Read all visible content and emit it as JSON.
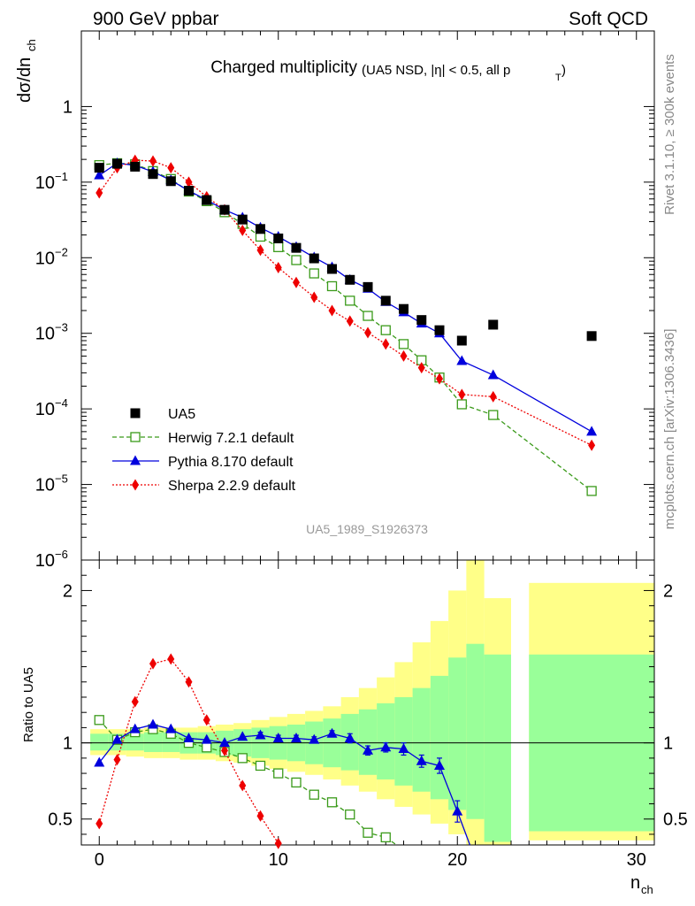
{
  "header": {
    "left": "900 GeV ppbar",
    "right": "Soft QCD",
    "side_top": "Rivet 3.1.10, ≥ 300k events",
    "side_bottom": "mcplots.cern.ch [arXiv:1306.3436]"
  },
  "chart_data": {
    "type": "line",
    "title": "Charged multiplicity",
    "subtitle": "(UA5 NSD, |η| < 0.5, all p",
    "subtitle_sub": "T",
    "analysis_id": "UA5_1989_S1926373",
    "xlabel_main": "n",
    "xlabel_sub": "ch",
    "ylabel_main": "dσ/dn",
    "ylabel_sub": "ch",
    "ratio_ylabel": "Ratio to UA5",
    "xlim": [
      -1,
      31
    ],
    "ylim_log": [
      1e-06,
      10.0
    ],
    "ratio_ylim": [
      0.33,
      2.2
    ],
    "x_ticks": [
      {
        "value": 0,
        "label": "0"
      },
      {
        "value": 10,
        "label": "10"
      },
      {
        "value": 20,
        "label": "20"
      },
      {
        "value": 30,
        "label": "30"
      }
    ],
    "y_ticks": [
      {
        "exp": 0,
        "base": "1",
        "sup": ""
      },
      {
        "exp": -1,
        "base": "10",
        "sup": "−1"
      },
      {
        "exp": -2,
        "base": "10",
        "sup": "−2"
      },
      {
        "exp": -3,
        "base": "10",
        "sup": "−3"
      },
      {
        "exp": -4,
        "base": "10",
        "sup": "−4"
      },
      {
        "exp": -5,
        "base": "10",
        "sup": "−5"
      },
      {
        "exp": -6,
        "base": "10",
        "sup": "−6"
      }
    ],
    "ratio_ticks": [
      {
        "value": 0.5,
        "label": "0.5"
      },
      {
        "value": 1,
        "label": "1"
      },
      {
        "value": 2,
        "label": "2"
      }
    ],
    "legend_position": "lower-left",
    "data": {
      "name": "UA5",
      "color": "#000000",
      "x": [
        0,
        1,
        2,
        3,
        4,
        5,
        6,
        7,
        8,
        9,
        10,
        11,
        12,
        13,
        14,
        15,
        16,
        17,
        18,
        19,
        20.25,
        22,
        27.5
      ],
      "y": [
        0.155,
        0.175,
        0.16,
        0.128,
        0.103,
        0.077,
        0.058,
        0.043,
        0.032,
        0.024,
        0.018,
        0.0135,
        0.0098,
        0.0071,
        0.0051,
        0.0041,
        0.0027,
        0.0021,
        0.0015,
        0.0011,
        0.0008,
        0.0013,
        0.00092
      ]
    },
    "series": [
      {
        "name": "Herwig 7.2.1 default",
        "color": "#3a9a1a",
        "dash": "5,3",
        "marker": "open-square",
        "x": [
          0,
          1,
          2,
          3,
          4,
          5,
          6,
          7,
          8,
          9,
          10,
          11,
          12,
          13,
          14,
          15,
          16,
          17,
          18,
          19,
          20.25,
          22,
          27.5
        ],
        "y": [
          0.168,
          0.178,
          0.172,
          0.14,
          0.11,
          0.075,
          0.056,
          0.04,
          0.028,
          0.019,
          0.0138,
          0.0093,
          0.0062,
          0.0042,
          0.0027,
          0.0017,
          0.0011,
          0.00072,
          0.00044,
          0.00026,
          0.000115,
          8.3e-05,
          8.2e-06
        ]
      },
      {
        "name": "Pythia 8.170 default",
        "color": "#0000dd",
        "dash": "",
        "marker": "filled-triangle",
        "x": [
          0,
          1,
          2,
          3,
          4,
          5,
          6,
          7,
          8,
          9,
          10,
          11,
          12,
          13,
          14,
          15,
          16,
          17,
          18,
          19,
          20.25,
          22,
          27.5
        ],
        "y": [
          0.123,
          0.178,
          0.167,
          0.137,
          0.106,
          0.077,
          0.058,
          0.043,
          0.034,
          0.025,
          0.019,
          0.0139,
          0.0101,
          0.0075,
          0.0051,
          0.0039,
          0.0026,
          0.0019,
          0.00135,
          0.001,
          0.00043,
          0.00028,
          5e-05
        ]
      },
      {
        "name": "Sherpa 2.2.9 default",
        "color": "#ee0000",
        "dash": "2,2",
        "marker": "filled-diamond",
        "x": [
          0,
          1,
          2,
          3,
          4,
          5,
          6,
          7,
          8,
          9,
          10,
          11,
          12,
          13,
          14,
          15,
          16,
          17,
          18,
          19,
          20.25,
          22,
          27.5
        ],
        "y": [
          0.072,
          0.155,
          0.195,
          0.19,
          0.155,
          0.1,
          0.064,
          0.043,
          0.023,
          0.0126,
          0.0074,
          0.0047,
          0.003,
          0.002,
          0.00145,
          0.00102,
          0.00072,
          0.0005,
          0.00035,
          0.00025,
          0.000155,
          0.000145,
          3.3e-05
        ]
      }
    ],
    "ratio": {
      "bands": [
        {
          "x0": -0.5,
          "x1": 0.5,
          "stat_lo": 0.95,
          "stat_hi": 1.06,
          "tot_lo": 0.92,
          "tot_hi": 1.09
        },
        {
          "x0": 0.5,
          "x1": 1.5,
          "stat_lo": 0.95,
          "stat_hi": 1.06,
          "tot_lo": 0.92,
          "tot_hi": 1.09
        },
        {
          "x0": 1.5,
          "x1": 2.5,
          "stat_lo": 0.95,
          "stat_hi": 1.06,
          "tot_lo": 0.91,
          "tot_hi": 1.09
        },
        {
          "x0": 2.5,
          "x1": 3.5,
          "stat_lo": 0.94,
          "stat_hi": 1.07,
          "tot_lo": 0.9,
          "tot_hi": 1.1
        },
        {
          "x0": 3.5,
          "x1": 4.5,
          "stat_lo": 0.94,
          "stat_hi": 1.07,
          "tot_lo": 0.9,
          "tot_hi": 1.1
        },
        {
          "x0": 4.5,
          "x1": 5.5,
          "stat_lo": 0.93,
          "stat_hi": 1.07,
          "tot_lo": 0.89,
          "tot_hi": 1.1
        },
        {
          "x0": 5.5,
          "x1": 6.5,
          "stat_lo": 0.93,
          "stat_hi": 1.07,
          "tot_lo": 0.89,
          "tot_hi": 1.11
        },
        {
          "x0": 6.5,
          "x1": 7.5,
          "stat_lo": 0.92,
          "stat_hi": 1.08,
          "tot_lo": 0.88,
          "tot_hi": 1.12
        },
        {
          "x0": 7.5,
          "x1": 8.5,
          "stat_lo": 0.91,
          "stat_hi": 1.09,
          "tot_lo": 0.87,
          "tot_hi": 1.13
        },
        {
          "x0": 8.5,
          "x1": 9.5,
          "stat_lo": 0.9,
          "stat_hi": 1.1,
          "tot_lo": 0.85,
          "tot_hi": 1.15
        },
        {
          "x0": 9.5,
          "x1": 10.5,
          "stat_lo": 0.89,
          "stat_hi": 1.11,
          "tot_lo": 0.83,
          "tot_hi": 1.17
        },
        {
          "x0": 10.5,
          "x1": 11.5,
          "stat_lo": 0.88,
          "stat_hi": 1.12,
          "tot_lo": 0.81,
          "tot_hi": 1.19
        },
        {
          "x0": 11.5,
          "x1": 12.5,
          "stat_lo": 0.86,
          "stat_hi": 1.14,
          "tot_lo": 0.79,
          "tot_hi": 1.21
        },
        {
          "x0": 12.5,
          "x1": 13.5,
          "stat_lo": 0.84,
          "stat_hi": 1.16,
          "tot_lo": 0.76,
          "tot_hi": 1.24
        },
        {
          "x0": 13.5,
          "x1": 14.5,
          "stat_lo": 0.82,
          "stat_hi": 1.19,
          "tot_lo": 0.72,
          "tot_hi": 1.3
        },
        {
          "x0": 14.5,
          "x1": 15.5,
          "stat_lo": 0.79,
          "stat_hi": 1.22,
          "tot_lo": 0.68,
          "tot_hi": 1.36
        },
        {
          "x0": 15.5,
          "x1": 16.5,
          "stat_lo": 0.76,
          "stat_hi": 1.26,
          "tot_lo": 0.63,
          "tot_hi": 1.43
        },
        {
          "x0": 16.5,
          "x1": 17.5,
          "stat_lo": 0.72,
          "stat_hi": 1.3,
          "tot_lo": 0.58,
          "tot_hi": 1.53
        },
        {
          "x0": 17.5,
          "x1": 18.5,
          "stat_lo": 0.68,
          "stat_hi": 1.36,
          "tot_lo": 0.53,
          "tot_hi": 1.66
        },
        {
          "x0": 18.5,
          "x1": 19.5,
          "stat_lo": 0.63,
          "stat_hi": 1.44,
          "tot_lo": 0.47,
          "tot_hi": 1.8
        },
        {
          "x0": 19.5,
          "x1": 20.5,
          "stat_lo": 0.56,
          "stat_hi": 1.56,
          "tot_lo": 0.4,
          "tot_hi": 2.0
        },
        {
          "x0": 20.5,
          "x1": 21.5,
          "stat_lo": 0.5,
          "stat_hi": 1.65,
          "tot_lo": 0.33,
          "tot_hi": 2.2
        },
        {
          "x0": 21.5,
          "x1": 23,
          "stat_lo": 0.35,
          "stat_hi": 1.58,
          "tot_lo": 0.33,
          "tot_hi": 1.95
        },
        {
          "x0": 24,
          "x1": 31,
          "stat_lo": 0.42,
          "stat_hi": 1.58,
          "tot_lo": 0.36,
          "tot_hi": 2.05
        }
      ],
      "herwig": [
        1.15,
        1.02,
        1.07,
        1.09,
        1.06,
        1.0,
        0.97,
        0.94,
        0.9,
        0.85,
        0.8,
        0.74,
        0.66,
        0.61,
        0.53,
        0.41,
        0.38
      ],
      "pythia": {
        "x": [
          0,
          1,
          2,
          3,
          4,
          5,
          6,
          7,
          8,
          9,
          10,
          11,
          12,
          13,
          14,
          15,
          16,
          17,
          18,
          19,
          20,
          20.7
        ],
        "y": [
          0.87,
          1.02,
          1.09,
          1.12,
          1.09,
          1.03,
          1.02,
          1.0,
          1.04,
          1.05,
          1.03,
          1.03,
          1.02,
          1.06,
          1.03,
          0.95,
          0.97,
          0.96,
          0.88,
          0.85,
          0.55,
          0.33
        ],
        "err": [
          0,
          0,
          0,
          0,
          0,
          0,
          0,
          0,
          0,
          0.02,
          0.02,
          0.02,
          0.02,
          0.02,
          0.03,
          0.03,
          0.03,
          0.04,
          0.04,
          0.05,
          0.07,
          0
        ]
      },
      "sherpa": [
        0.47,
        0.89,
        1.27,
        1.52,
        1.55,
        1.4,
        1.15,
        0.95,
        0.72,
        0.52,
        0.34
      ]
    }
  }
}
